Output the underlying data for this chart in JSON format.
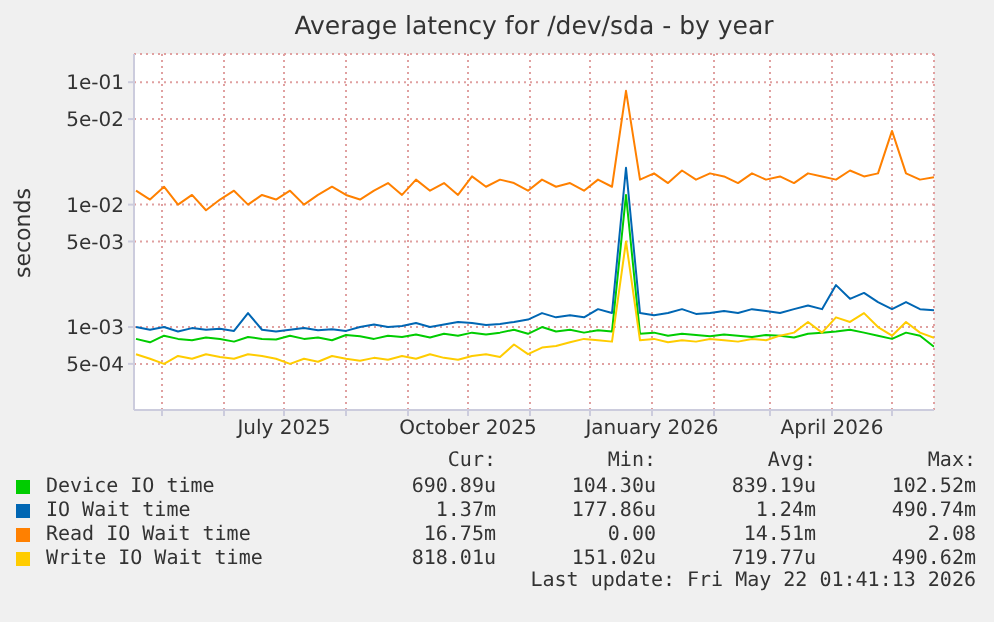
{
  "chart_data": {
    "type": "line",
    "title": "Average latency for /dev/sda - by year",
    "ylabel": "seconds",
    "log": "y",
    "grid": true,
    "legend": "bottom",
    "marker": "none",
    "line_style": "solid",
    "x": [
      "2025-04-18",
      "2025-04-25",
      "2025-05-02",
      "2025-05-09",
      "2025-05-16",
      "2025-05-23",
      "2025-05-30",
      "2025-06-06",
      "2025-06-13",
      "2025-06-20",
      "2025-06-27",
      "2025-07-04",
      "2025-07-11",
      "2025-07-18",
      "2025-07-25",
      "2025-08-01",
      "2025-08-08",
      "2025-08-15",
      "2025-08-22",
      "2025-08-29",
      "2025-09-05",
      "2025-09-12",
      "2025-09-19",
      "2025-09-26",
      "2025-10-03",
      "2025-10-10",
      "2025-10-17",
      "2025-10-24",
      "2025-10-31",
      "2025-11-07",
      "2025-11-14",
      "2025-11-21",
      "2025-11-28",
      "2025-12-05",
      "2025-12-12",
      "2025-12-19",
      "2025-12-26",
      "2026-01-02",
      "2026-01-09",
      "2026-01-16",
      "2026-01-23",
      "2026-01-30",
      "2026-02-06",
      "2026-02-13",
      "2026-02-20",
      "2026-02-27",
      "2026-03-06",
      "2026-03-13",
      "2026-03-20",
      "2026-03-27",
      "2026-04-03",
      "2026-04-10",
      "2026-04-17",
      "2026-04-24",
      "2026-05-01",
      "2026-05-08",
      "2026-05-15",
      "2026-05-22"
    ],
    "xlim": [
      "2025-04-17",
      "2026-05-22"
    ],
    "xticks": [
      {
        "value": "2025-05-01",
        "label": null
      },
      {
        "value": "2025-06-01",
        "label": null
      },
      {
        "value": "2025-07-01",
        "label": "July 2025"
      },
      {
        "value": "2025-08-01",
        "label": null
      },
      {
        "value": "2025-09-01",
        "label": null
      },
      {
        "value": "2025-10-01",
        "label": "October 2025"
      },
      {
        "value": "2025-11-01",
        "label": null
      },
      {
        "value": "2025-12-01",
        "label": null
      },
      {
        "value": "2026-01-01",
        "label": "January 2026"
      },
      {
        "value": "2026-02-01",
        "label": null
      },
      {
        "value": "2026-03-01",
        "label": null
      },
      {
        "value": "2026-04-01",
        "label": "April 2026"
      },
      {
        "value": "2026-05-01",
        "label": null
      }
    ],
    "ylim": [
      0.00021,
      0.17
    ],
    "yticks": [
      {
        "value": 0.0005,
        "label": "5e-04"
      },
      {
        "value": 0.001,
        "label": "1e-03"
      },
      {
        "value": 0.005,
        "label": "5e-03"
      },
      {
        "value": 0.01,
        "label": "1e-02"
      },
      {
        "value": 0.05,
        "label": "5e-02"
      },
      {
        "value": 0.1,
        "label": "1e-01"
      }
    ],
    "series": [
      {
        "name": "Device IO time",
        "color": "#00cc00",
        "values": [
          0.0008,
          0.00075,
          0.00085,
          0.0008,
          0.00078,
          0.00082,
          0.0008,
          0.00076,
          0.00083,
          0.0008,
          0.00079,
          0.00085,
          0.0008,
          0.00082,
          0.00078,
          0.00086,
          0.00084,
          0.0008,
          0.00085,
          0.00083,
          0.00087,
          0.00082,
          0.00088,
          0.00085,
          0.0009,
          0.00087,
          0.0009,
          0.00095,
          0.00088,
          0.001,
          0.00092,
          0.00095,
          0.0009,
          0.00094,
          0.00092,
          0.012,
          0.00088,
          0.0009,
          0.00085,
          0.00088,
          0.00086,
          0.00084,
          0.00087,
          0.00085,
          0.00083,
          0.00086,
          0.00085,
          0.00082,
          0.00088,
          0.0009,
          0.00092,
          0.00095,
          0.0009,
          0.00085,
          0.0008,
          0.0009,
          0.00085,
          0.00069
        ]
      },
      {
        "name": "IO Wait time",
        "color": "#0066b3",
        "values": [
          0.001,
          0.00095,
          0.001,
          0.00092,
          0.00098,
          0.00095,
          0.00097,
          0.00093,
          0.0013,
          0.00095,
          0.00092,
          0.00095,
          0.00098,
          0.00094,
          0.00096,
          0.00093,
          0.001,
          0.00105,
          0.001,
          0.00102,
          0.00108,
          0.001,
          0.00105,
          0.0011,
          0.00108,
          0.00104,
          0.00106,
          0.0011,
          0.00115,
          0.0013,
          0.0012,
          0.00125,
          0.0012,
          0.0014,
          0.0013,
          0.02,
          0.0013,
          0.00125,
          0.0013,
          0.0014,
          0.00128,
          0.0013,
          0.00135,
          0.0013,
          0.0014,
          0.00135,
          0.0013,
          0.0014,
          0.0015,
          0.0014,
          0.0022,
          0.0017,
          0.0019,
          0.0016,
          0.0014,
          0.0016,
          0.0014,
          0.00137
        ]
      },
      {
        "name": "Read IO Wait time",
        "color": "#ff8000",
        "values": [
          0.013,
          0.011,
          0.014,
          0.01,
          0.012,
          0.009,
          0.011,
          0.013,
          0.01,
          0.012,
          0.011,
          0.013,
          0.01,
          0.012,
          0.014,
          0.012,
          0.011,
          0.013,
          0.015,
          0.012,
          0.016,
          0.013,
          0.015,
          0.012,
          0.017,
          0.014,
          0.016,
          0.015,
          0.013,
          0.016,
          0.014,
          0.015,
          0.013,
          0.016,
          0.014,
          0.085,
          0.016,
          0.018,
          0.015,
          0.019,
          0.016,
          0.018,
          0.017,
          0.015,
          0.018,
          0.016,
          0.017,
          0.015,
          0.018,
          0.017,
          0.016,
          0.019,
          0.017,
          0.018,
          0.04,
          0.018,
          0.016,
          0.01675
        ]
      },
      {
        "name": "Write IO Wait time",
        "color": "#ffcc00",
        "values": [
          0.0006,
          0.00055,
          0.0005,
          0.00058,
          0.00055,
          0.0006,
          0.00057,
          0.00055,
          0.0006,
          0.00058,
          0.00055,
          0.0005,
          0.00055,
          0.00052,
          0.00058,
          0.00055,
          0.00053,
          0.00056,
          0.00054,
          0.00058,
          0.00055,
          0.0006,
          0.00056,
          0.00054,
          0.00058,
          0.0006,
          0.00057,
          0.00072,
          0.0006,
          0.00068,
          0.0007,
          0.00075,
          0.0008,
          0.00078,
          0.00076,
          0.005,
          0.00078,
          0.0008,
          0.00075,
          0.00078,
          0.00076,
          0.0008,
          0.00078,
          0.00076,
          0.0008,
          0.00078,
          0.00085,
          0.0009,
          0.0011,
          0.0009,
          0.0012,
          0.0011,
          0.0013,
          0.001,
          0.00085,
          0.0011,
          0.0009,
          0.000818
        ]
      }
    ],
    "annotations": [
      "Cur:",
      "Min:",
      "Avg:",
      "Max:",
      "690.89u",
      "104.30u",
      "839.19u",
      "102.52m",
      "1.37m",
      "177.86u",
      "1.24m",
      "490.74m",
      "16.75m",
      "0.00",
      "14.51m",
      "2.08",
      "818.01u",
      "151.02u",
      "719.77u",
      "490.62m",
      "Last update: Fri May 22 01:41:13 2026"
    ]
  }
}
